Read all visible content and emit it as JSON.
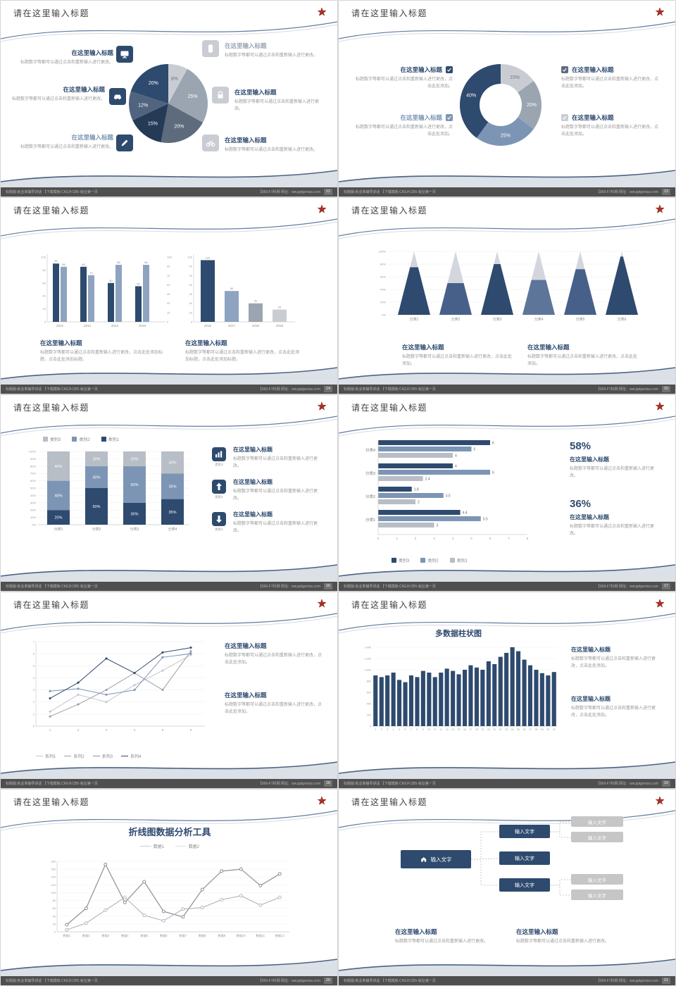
{
  "meta": {
    "layout": "2x5 grid of presentation slide thumbnails"
  },
  "colors": {
    "page_bg": "#e4e4e4",
    "slide_bg": "#ffffff",
    "navy": "#2e4a6e",
    "navy_dark": "#243a57",
    "steel": "#5d7599",
    "steel_mid": "#7d95b5",
    "steel_light": "#8ea3c0",
    "gray_dark": "#5d6b7d",
    "gray": "#9aa5b1",
    "gray_light": "#c9cdd3",
    "title_text": "#3f3f3f",
    "heading_text": "#2e4a6e",
    "body_text": "#9a9a9a",
    "footer_bg": "#4f4f4f",
    "footer_text": "#b5b5b5",
    "star_red": "#a93226",
    "swoosh_dark": "#3c5a86",
    "swoosh_light": "#b9c2cf"
  },
  "common": {
    "slide_title": "请在这里输入标题",
    "heading": "在这里输入标题",
    "body_short": "标题数字等都可以通过点击和重新输入进行更改。",
    "body_mid": "标题数字等都可以通过点击和重新输入进行更改，点击此处添加。",
    "body_long": "标题数字等都可以通过点击和重新输入进行更改，点击此处添加标题，点击此处添加标题。",
    "footer_left": "标题版:就业率辅导讲话 【下载模板:CKE片CB5·就业第一页",
    "footer_right": "【069-F7科网 网址：ww.pptgenius.com",
    "star": "★",
    "input_text": "输入文字"
  },
  "slides": [
    {
      "page": "12",
      "type": "pie_infographic",
      "blocks": [
        {
          "icon": "monitor-icon",
          "badge": "navy",
          "title_color": "navy",
          "body": "body_short"
        },
        {
          "icon": "phone-icon",
          "badge": "gray_light",
          "title_color": "gray",
          "body": "body_short"
        },
        {
          "icon": "car-icon",
          "badge": "navy",
          "title_color": "navy",
          "body": "body_short"
        },
        {
          "icon": "lock-icon",
          "badge": "gray_light",
          "title_color": "navy",
          "body": "body_short"
        },
        {
          "icon": "pen-icon",
          "badge": "navy",
          "title_color": "steel_mid",
          "body": "body_short"
        },
        {
          "icon": "bike-icon",
          "badge": "gray_light",
          "title_color": "navy",
          "body": "body_short"
        }
      ]
    },
    {
      "page": "13",
      "type": "donut_checklist",
      "blocks": [
        {
          "check": "navy",
          "title_color": "navy",
          "body": "body_mid"
        },
        {
          "check": "steel_mid",
          "title_color": "steel_mid",
          "body": "body_mid"
        },
        {
          "check": "gray_dark",
          "title_color": "navy",
          "body": "body_mid"
        },
        {
          "check": "gray_light",
          "title_color": "navy",
          "body": "body_mid"
        }
      ]
    },
    {
      "page": "14",
      "type": "double_bar"
    },
    {
      "page": "15",
      "type": "cone_chart"
    },
    {
      "page": "16",
      "type": "stacked_bar",
      "rows": [
        {
          "icon": "bar-chart-icon",
          "label": "类别3"
        },
        {
          "icon": "arrow-up-icon",
          "label": "类别2"
        },
        {
          "icon": "arrow-down-icon",
          "label": "类别1"
        }
      ]
    },
    {
      "page": "17",
      "type": "hbar_stats",
      "stats": [
        {
          "value": "58%"
        },
        {
          "value": "36%"
        }
      ]
    },
    {
      "page": "18",
      "type": "line_compare"
    },
    {
      "page": "19",
      "type": "multi_column"
    },
    {
      "page": "20",
      "type": "line_tool"
    },
    {
      "page": "21",
      "type": "org_diagram",
      "diagram": {
        "root_label": "输入文字",
        "root_icon": "home-icon",
        "children": [
          "输入文字",
          "输入文字",
          "输入文字"
        ],
        "leaves": [
          "输入文字",
          "输入文字",
          "输入文字",
          "输入文字"
        ]
      }
    }
  ],
  "chart_data": [
    {
      "slide_page": "12",
      "type": "pie",
      "start": "top",
      "direction": "clockwise",
      "segments": [
        {
          "label": "8%",
          "value": 8,
          "color": "#c9cdd3",
          "label_color": "#777777"
        },
        {
          "label": "25%",
          "value": 25,
          "color": "#9aa5b1",
          "label_color": "#ffffff"
        },
        {
          "label": "20%",
          "value": 20,
          "color": "#5d6b7d",
          "label_color": "#ffffff"
        },
        {
          "label": "15%",
          "value": 15,
          "color": "#243a57",
          "label_color": "#ffffff"
        },
        {
          "label": "12%",
          "value": 12,
          "color": "#51647e",
          "label_color": "#ffffff"
        },
        {
          "label": "20%",
          "value": 20,
          "color": "#2e4a6e",
          "label_color": "#ffffff"
        }
      ]
    },
    {
      "slide_page": "13",
      "type": "pie",
      "subtype": "donut",
      "segments": [
        {
          "label": "15%",
          "value": 15,
          "color": "#c9cdd3",
          "label_color": "#777777"
        },
        {
          "label": "20%",
          "value": 20,
          "color": "#9aa5b1",
          "label_color": "#ffffff"
        },
        {
          "label": "25%",
          "value": 25,
          "color": "#7d95b5",
          "label_color": "#ffffff"
        },
        {
          "label": "40%",
          "value": 40,
          "color": "#2e4a6e",
          "label_color": "#ffffff"
        }
      ]
    },
    {
      "slide_page": "14",
      "type": "bar",
      "categories": [
        "2010",
        "2012",
        "2014",
        "2016"
      ],
      "series": [
        {
          "name": "系列1",
          "color": "#2e4a6e",
          "values": [
            90,
            85,
            60,
            55
          ]
        },
        {
          "name": "系列2",
          "color": "#8ea3c0",
          "values": [
            85,
            72,
            88,
            88
          ]
        }
      ],
      "ylim": [
        0,
        100
      ],
      "yticks": [
        0,
        20,
        40,
        60,
        80,
        100
      ],
      "yticks_right": [
        0,
        15,
        30,
        45,
        60,
        75,
        90,
        105
      ]
    },
    {
      "slide_page": "14",
      "type": "bar",
      "categories": [
        "2016",
        "2017",
        "2018",
        "2019"
      ],
      "values": [
        100,
        50,
        30,
        20
      ],
      "colors": [
        "#2e4a6e",
        "#8ea3c0",
        "#9aa5b1",
        "#c9cdd3"
      ],
      "ylim": [
        0,
        105
      ]
    },
    {
      "slide_page": "15",
      "type": "bar",
      "subtype": "cone",
      "categories": [
        "分类1",
        "分类2",
        "分类3",
        "分类4",
        "分类5",
        "分类6"
      ],
      "values": [
        75,
        50,
        80,
        55,
        72,
        92
      ],
      "ylim": [
        0,
        100
      ],
      "body_color": "#d3d7dd",
      "fill_colors": [
        "#2e4a6e",
        "#46608a",
        "#2e4a6e",
        "#5d7599",
        "#46608a",
        "#2e4a6e"
      ]
    },
    {
      "slide_page": "16",
      "type": "bar",
      "subtype": "stacked_percent",
      "categories": [
        "分类1",
        "分类2",
        "分类3",
        "分类4"
      ],
      "series": [
        {
          "name": "类别1",
          "color": "#2e4a6e",
          "values": [
            20,
            50,
            30,
            35
          ]
        },
        {
          "name": "类别2",
          "color": "#7d95b5",
          "values": [
            40,
            30,
            50,
            35
          ]
        },
        {
          "name": "类别3",
          "color": "#b8bec6",
          "values": [
            40,
            20,
            20,
            30
          ]
        }
      ],
      "legend": [
        {
          "name": "类别3",
          "color": "#b8bec6"
        },
        {
          "name": "类别2",
          "color": "#7d95b5"
        },
        {
          "name": "类别1",
          "color": "#2e4a6e"
        }
      ],
      "ylim": [
        0,
        100
      ]
    },
    {
      "slide_page": "17",
      "type": "bar",
      "subtype": "horizontal",
      "categories": [
        "分类1",
        "分类2",
        "分类3",
        "分类4"
      ],
      "series": [
        {
          "name": "类别3",
          "color": "#2e4a6e",
          "values": [
            4.4,
            1.8,
            4,
            6
          ]
        },
        {
          "name": "类别2",
          "color": "#7d95b5",
          "values": [
            5.5,
            3.5,
            6,
            5
          ]
        },
        {
          "name": "类别1",
          "color": "#b8bec6",
          "values": [
            3,
            2,
            2.4,
            4
          ]
        }
      ],
      "legend": [
        {
          "name": "类别3",
          "color": "#2e4a6e"
        },
        {
          "name": "类别2",
          "color": "#7d95b5"
        },
        {
          "name": "类别1",
          "color": "#b8bec6"
        }
      ],
      "xlim": [
        0,
        8
      ],
      "xticks": [
        0,
        1,
        2,
        3,
        4,
        5,
        6,
        7,
        8
      ]
    },
    {
      "slide_page": "18",
      "type": "line",
      "x": [
        1,
        2,
        3,
        4,
        5,
        6
      ],
      "ylim": [
        0,
        7
      ],
      "series": [
        {
          "name": "系列1",
          "color": "#c3c7cd",
          "values": [
            1.2,
            2.6,
            2,
            3.4,
            4.6,
            5.9
          ]
        },
        {
          "name": "系列2",
          "color": "#9aa0a8",
          "values": [
            0.8,
            1.8,
            3,
            4.4,
            3,
            6.2
          ]
        },
        {
          "name": "系列3",
          "color": "#7d95b5",
          "values": [
            2.9,
            3.1,
            2.6,
            3,
            5.7,
            6
          ]
        },
        {
          "name": "系列4",
          "color": "#2e4a6e",
          "values": [
            2.3,
            3.6,
            5.6,
            4.4,
            6.1,
            6.5
          ]
        }
      ]
    },
    {
      "slide_page": "19",
      "type": "bar",
      "title": "多数据柱状图",
      "color": "#2e4a6e",
      "categories": [
        "1",
        "2",
        "3",
        "4",
        "5",
        "6",
        "7",
        "8",
        "9",
        "10",
        "11",
        "12",
        "13",
        "14",
        "15",
        "16",
        "17",
        "18",
        "19",
        "20",
        "21",
        "22",
        "23",
        "24",
        "25",
        "26",
        "27",
        "28",
        "29",
        "30",
        "31"
      ],
      "values": [
        900,
        870,
        900,
        950,
        820,
        780,
        900,
        870,
        980,
        950,
        870,
        950,
        1020,
        980,
        920,
        1000,
        1080,
        1040,
        1000,
        1150,
        1100,
        1230,
        1300,
        1400,
        1330,
        1180,
        1080,
        1000,
        940,
        900,
        960
      ],
      "ylim": [
        0,
        1400
      ],
      "yticks": [
        0,
        200,
        400,
        600,
        800,
        1000,
        1200,
        1400
      ]
    },
    {
      "slide_page": "20",
      "type": "line",
      "title": "折线图数据分析工具",
      "categories": [
        "数据1",
        "数据2",
        "数据3",
        "数据4",
        "数据5",
        "数据6",
        "数据7",
        "数据8",
        "数据9",
        "数据10",
        "数据11",
        "数据12"
      ],
      "ylim": [
        0,
        180
      ],
      "series": [
        {
          "name": "数据1",
          "color": "#8a8f96",
          "values": [
            18,
            60,
            172,
            75,
            128,
            52,
            38,
            108,
            155,
            160,
            118,
            148
          ]
        },
        {
          "name": "数据2",
          "color": "#b5bac0",
          "values": [
            5,
            22,
            55,
            88,
            42,
            28,
            58,
            62,
            82,
            92,
            68,
            88
          ]
        }
      ]
    }
  ]
}
